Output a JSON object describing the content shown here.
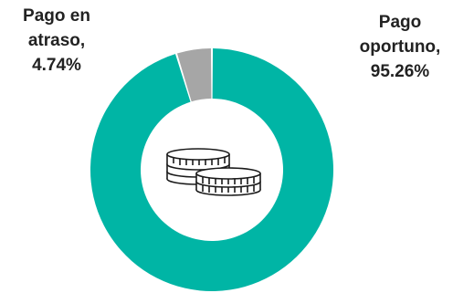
{
  "chart_data": {
    "type": "pie",
    "variant": "donut",
    "slices": [
      {
        "label_line1": "Pago",
        "label_line2": "oportuno,",
        "value": 95.26,
        "value_label": "95.26%",
        "color": "#00B5A5"
      },
      {
        "label_line1": "Pago en",
        "label_line2": "atraso,",
        "value": 4.74,
        "value_label": "4.74%",
        "color": "#A6A6A6"
      }
    ],
    "center_icon": "coins-stack-icon",
    "legend": "none"
  }
}
